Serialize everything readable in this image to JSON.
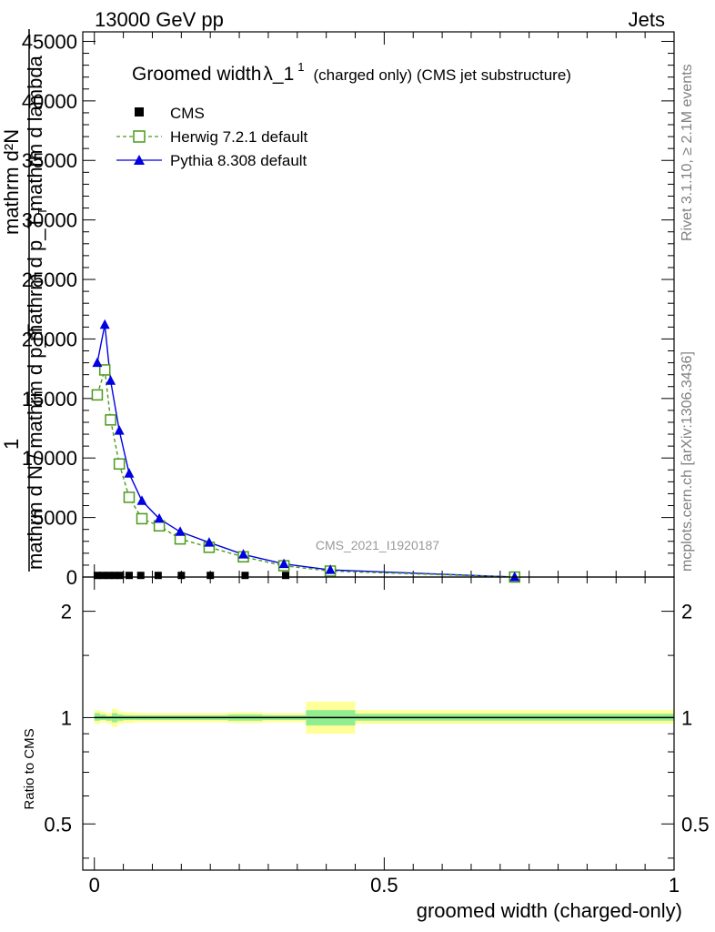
{
  "header": {
    "left": "13000 GeV pp",
    "right": "Jets"
  },
  "side_labels": {
    "rivet": "Rivet 3.1.10, ≥ 2.1M events",
    "mcplots": "mcplots.cern.ch [arXiv:1306.3436]"
  },
  "colors": {
    "cms": "#000000",
    "herwig": "#4a9a1a",
    "pythia": "#0000e0",
    "band_yellow": "#ffff99",
    "band_green": "#90ee90",
    "watermark": "#999999"
  },
  "chart_data": [
    {
      "type": "line",
      "title_main": "Groomed width",
      "title_lambda": "λ_1",
      "title_sup": "1",
      "title_rest": "(charged only) (CMS jet substructure)",
      "ylabel_lines": [
        "mathrm d²N",
        "mathrm d p_T mathrm d lambda",
        "1",
        "mathrm d N / mathrm d p_T"
      ],
      "ylabel_sub": "T",
      "xlabel": "groomed width (charged-only)",
      "watermark": "CMS_2021_I1920187",
      "xlim": [
        -0.02,
        1.0
      ],
      "ylim": [
        0,
        45800
      ],
      "yticks": [
        {
          "v": 0,
          "label": "0"
        },
        {
          "v": 5000,
          "label": "5000"
        },
        {
          "v": 10000,
          "label": "10000"
        },
        {
          "v": 15000,
          "label": "15000"
        },
        {
          "v": 20000,
          "label": "20000"
        },
        {
          "v": 25000,
          "label": "25000"
        },
        {
          "v": 30000,
          "label": "30000"
        },
        {
          "v": 35000,
          "label": "35000"
        },
        {
          "v": 40000,
          "label": "40000"
        },
        {
          "v": 45000,
          "label": "45000"
        }
      ],
      "series": [
        {
          "name": "CMS",
          "marker": "square-filled",
          "x": [
            0.005,
            0.015,
            0.025,
            0.035,
            0.045,
            0.06,
            0.08,
            0.11,
            0.15,
            0.2,
            0.26,
            0.33
          ],
          "y": [
            60,
            60,
            60,
            60,
            60,
            60,
            60,
            60,
            60,
            60,
            60,
            60
          ]
        },
        {
          "name": "Herwig 7.2.1 default",
          "marker": "square-open",
          "x": [
            0.005,
            0.018,
            0.028,
            0.043,
            0.06,
            0.082,
            0.112,
            0.148,
            0.198,
            0.257,
            0.327,
            0.407,
            0.725
          ],
          "y": [
            15300,
            17400,
            13200,
            9500,
            6700,
            4900,
            4300,
            3200,
            2500,
            1700,
            950,
            500,
            0
          ]
        },
        {
          "name": "Pythia 8.308 default",
          "marker": "triangle-filled",
          "x": [
            0.005,
            0.018,
            0.028,
            0.043,
            0.06,
            0.082,
            0.112,
            0.148,
            0.198,
            0.257,
            0.327,
            0.407,
            0.725
          ],
          "y": [
            18000,
            21200,
            16500,
            12300,
            8700,
            6400,
            4900,
            3800,
            2900,
            1900,
            1100,
            600,
            0
          ]
        }
      ]
    },
    {
      "type": "area",
      "ylabel": "Ratio to CMS",
      "xlim": [
        -0.02,
        1.0
      ],
      "ylim": [
        0.37,
        2.5
      ],
      "scale": "log",
      "xticks": [
        {
          "v": 0,
          "label": "0"
        },
        {
          "v": 0.5,
          "label": "0.5"
        },
        {
          "v": 1,
          "label": "1"
        }
      ],
      "yticks": [
        {
          "v": 0.5,
          "label": "0.5"
        },
        {
          "v": 1,
          "label": "1"
        },
        {
          "v": 2,
          "label": "2"
        }
      ],
      "reference": 1,
      "bands": [
        {
          "x0": 0.0,
          "x1": 0.01,
          "yellow": [
            0.96,
            1.05
          ],
          "green": [
            0.98,
            1.03
          ]
        },
        {
          "x0": 0.01,
          "x1": 0.02,
          "yellow": [
            0.97,
            1.04
          ],
          "green": [
            0.985,
            1.02
          ]
        },
        {
          "x0": 0.02,
          "x1": 0.03,
          "yellow": [
            0.96,
            1.03
          ],
          "green": [
            0.98,
            1.01
          ]
        },
        {
          "x0": 0.03,
          "x1": 0.04,
          "yellow": [
            0.94,
            1.06
          ],
          "green": [
            0.97,
            1.03
          ]
        },
        {
          "x0": 0.04,
          "x1": 0.05,
          "yellow": [
            0.96,
            1.04
          ],
          "green": [
            0.98,
            1.02
          ]
        },
        {
          "x0": 0.05,
          "x1": 0.07,
          "yellow": [
            0.965,
            1.035
          ],
          "green": [
            0.985,
            1.015
          ]
        },
        {
          "x0": 0.07,
          "x1": 0.09,
          "yellow": [
            0.97,
            1.03
          ],
          "green": [
            0.985,
            1.015
          ]
        },
        {
          "x0": 0.09,
          "x1": 0.13,
          "yellow": [
            0.97,
            1.03
          ],
          "green": [
            0.985,
            1.015
          ]
        },
        {
          "x0": 0.13,
          "x1": 0.17,
          "yellow": [
            0.97,
            1.03
          ],
          "green": [
            0.985,
            1.015
          ]
        },
        {
          "x0": 0.17,
          "x1": 0.23,
          "yellow": [
            0.97,
            1.03
          ],
          "green": [
            0.985,
            1.015
          ]
        },
        {
          "x0": 0.23,
          "x1": 0.29,
          "yellow": [
            0.965,
            1.035
          ],
          "green": [
            0.98,
            1.02
          ]
        },
        {
          "x0": 0.29,
          "x1": 0.365,
          "yellow": [
            0.97,
            1.03
          ],
          "green": [
            0.985,
            1.015
          ]
        },
        {
          "x0": 0.365,
          "x1": 0.45,
          "yellow": [
            0.9,
            1.11
          ],
          "green": [
            0.95,
            1.05
          ]
        },
        {
          "x0": 0.45,
          "x1": 1.0,
          "yellow": [
            0.96,
            1.05
          ],
          "green": [
            0.98,
            1.025
          ]
        }
      ]
    }
  ]
}
